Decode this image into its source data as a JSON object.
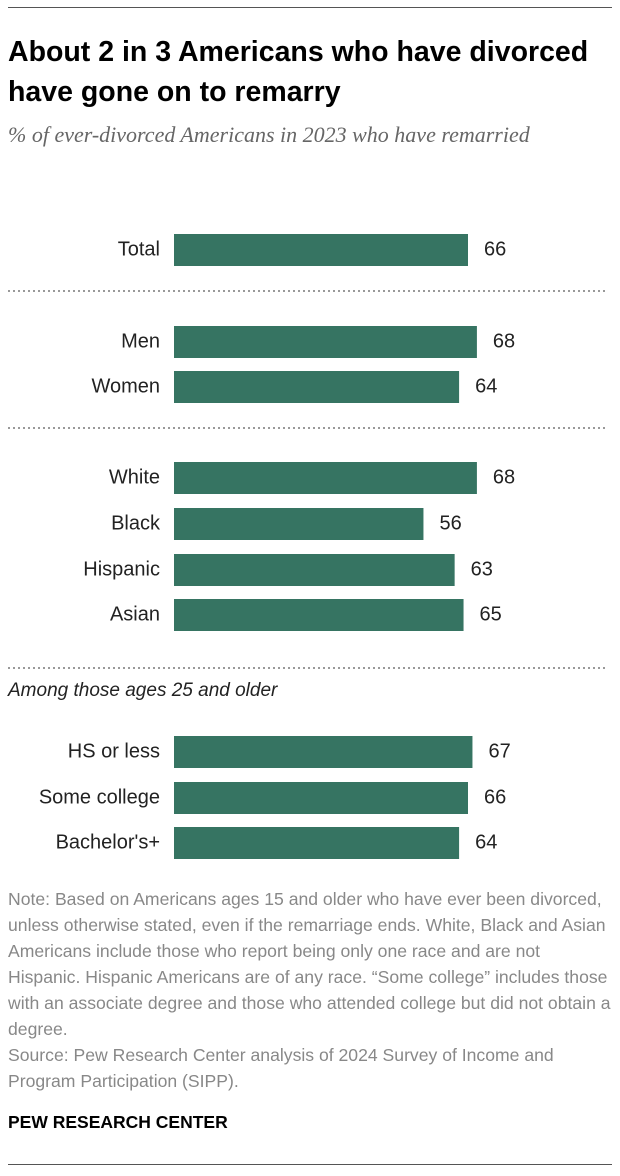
{
  "title": "About 2 in 3 Americans who have divorced have gone on to remarry",
  "subtitle": "% of ever-divorced Americans in 2023 who have remarried",
  "note": "Note: Based on Americans ages 15 and older who have ever been divorced, unless otherwise stated, even if the remarriage ends. White, Black and Asian Americans include those who report being only one race and are not Hispanic. Hispanic Americans are of any race. “Some college” includes those with an associate degree and those who attended college but did not obtain a degree.",
  "source": "Source: Pew Research Center analysis of 2024 Survey of Income and Program Participation (SIPP).",
  "brand": "PEW RESEARCH CENTER",
  "colors": {
    "bar": "#367462",
    "divider": "#999999"
  },
  "chart_data": {
    "type": "bar",
    "orientation": "horizontal",
    "categories": [
      "Total",
      "Men",
      "Women",
      "White",
      "Black",
      "Hispanic",
      "Asian",
      "HS or less",
      "Some college",
      "Bachelor's+"
    ],
    "values": [
      66,
      68,
      64,
      68,
      56,
      63,
      65,
      67,
      66,
      64
    ],
    "groups": [
      {
        "header": "",
        "categories": [
          "Total"
        ]
      },
      {
        "header": "",
        "categories": [
          "Men",
          "Women"
        ]
      },
      {
        "header": "",
        "categories": [
          "White",
          "Black",
          "Hispanic",
          "Asian"
        ]
      },
      {
        "header": "Among those ages 25 and older",
        "categories": [
          "HS or less",
          "Some college",
          "Bachelor's+"
        ]
      }
    ],
    "xlim": [
      0,
      100
    ],
    "grid": false,
    "axis_visible": false,
    "data_labels": true
  }
}
